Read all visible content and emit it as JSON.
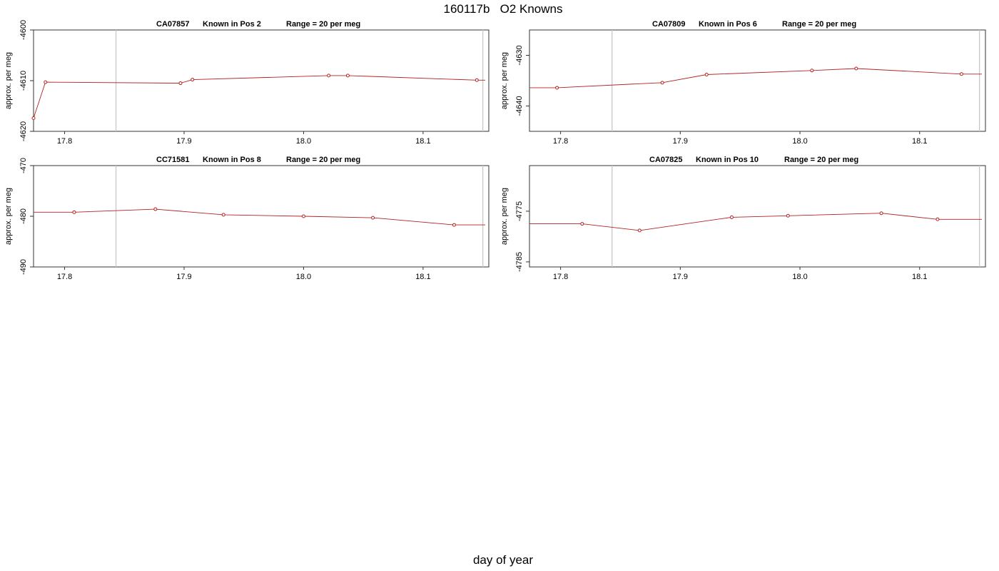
{
  "page": {
    "title": "160117b   O2 Knowns",
    "xlabel": "day of year"
  },
  "colors": {
    "series": "#b22222",
    "reference_line": "#c8c8c8",
    "axis": "#333333"
  },
  "chart_data": [
    {
      "type": "line",
      "title_parts": [
        "CA07857",
        "Known in Pos 2",
        "Range = 20 per meg"
      ],
      "ylabel": "approx. per meg",
      "xlim": [
        17.774,
        18.155
      ],
      "ylim": [
        -4620,
        -4600
      ],
      "xticks": [
        17.8,
        17.9,
        18.0,
        18.1
      ],
      "xtick_labels": [
        "17.8",
        "17.9",
        "18.0",
        "18.1"
      ],
      "yticks": [
        -4620,
        -4610,
        -4600
      ],
      "ytick_labels": [
        "-4620",
        "-4610",
        "-4600"
      ],
      "vlines": [
        17.843,
        18.15
      ],
      "line_x": [
        17.774,
        17.784,
        17.897,
        17.907,
        18.021,
        18.037,
        18.145,
        18.152
      ],
      "line_y": [
        -4617.4,
        -4610.3,
        -4610.5,
        -4609.8,
        -4609.0,
        -4609.0,
        -4609.9,
        -4609.9
      ],
      "points": [
        {
          "x": 17.774,
          "y": -4617.4
        },
        {
          "x": 17.784,
          "y": -4610.3
        },
        {
          "x": 17.897,
          "y": -4610.5
        },
        {
          "x": 17.907,
          "y": -4609.8
        },
        {
          "x": 18.021,
          "y": -4609.0
        },
        {
          "x": 18.037,
          "y": -4609.0
        },
        {
          "x": 18.145,
          "y": -4609.9
        }
      ],
      "grid": false
    },
    {
      "type": "line",
      "title_parts": [
        "CA07809",
        "Known in Pos 6",
        "Range = 20 per meg"
      ],
      "ylabel": "approx. per meg",
      "xlim": [
        17.774,
        18.155
      ],
      "ylim": [
        -4645,
        -4625
      ],
      "xticks": [
        17.8,
        17.9,
        18.0,
        18.1
      ],
      "xtick_labels": [
        "17.8",
        "17.9",
        "18.0",
        "18.1"
      ],
      "yticks": [
        -4640,
        -4630
      ],
      "ytick_labels": [
        "-4640",
        "-4630"
      ],
      "vlines": [
        17.843,
        18.15
      ],
      "line_x": [
        17.774,
        17.797,
        17.885,
        17.922,
        18.01,
        18.047,
        18.135,
        18.152
      ],
      "line_y": [
        -4636.4,
        -4636.4,
        -4635.4,
        -4633.8,
        -4633.0,
        -4632.6,
        -4633.7,
        -4633.7
      ],
      "points": [
        {
          "x": 17.797,
          "y": -4636.4
        },
        {
          "x": 17.885,
          "y": -4635.4
        },
        {
          "x": 17.922,
          "y": -4633.8
        },
        {
          "x": 18.01,
          "y": -4633.0
        },
        {
          "x": 18.047,
          "y": -4632.6
        },
        {
          "x": 18.135,
          "y": -4633.7
        }
      ],
      "grid": false
    },
    {
      "type": "line",
      "title_parts": [
        "CC71581",
        "Known in Pos 8",
        "Range = 20 per meg"
      ],
      "ylabel": "approx. per meg",
      "xlim": [
        17.774,
        18.155
      ],
      "ylim": [
        -490,
        -470
      ],
      "xticks": [
        17.8,
        17.9,
        18.0,
        18.1
      ],
      "xtick_labels": [
        "17.8",
        "17.9",
        "18.0",
        "18.1"
      ],
      "yticks": [
        -490,
        -480,
        -470
      ],
      "ytick_labels": [
        "-490",
        "-480",
        "-470"
      ],
      "vlines": [
        17.843,
        18.15
      ],
      "line_x": [
        17.774,
        17.808,
        17.876,
        17.933,
        18.0,
        18.058,
        18.126,
        18.152
      ],
      "line_y": [
        -479.2,
        -479.2,
        -478.6,
        -479.7,
        -480.0,
        -480.3,
        -481.7,
        -481.7
      ],
      "points": [
        {
          "x": 17.808,
          "y": -479.2
        },
        {
          "x": 17.876,
          "y": -478.6
        },
        {
          "x": 17.933,
          "y": -479.7
        },
        {
          "x": 18.0,
          "y": -480.0
        },
        {
          "x": 18.058,
          "y": -480.3
        },
        {
          "x": 18.126,
          "y": -481.7
        }
      ],
      "grid": false
    },
    {
      "type": "line",
      "title_parts": [
        "CA07825",
        "Known in Pos 10",
        "Range = 20 per meg"
      ],
      "ylabel": "approx. per meg",
      "xlim": [
        17.774,
        18.155
      ],
      "ylim": [
        -4786,
        -4766
      ],
      "xticks": [
        17.8,
        17.9,
        18.0,
        18.1
      ],
      "xtick_labels": [
        "17.8",
        "17.9",
        "18.0",
        "18.1"
      ],
      "yticks": [
        -4785,
        -4775
      ],
      "ytick_labels": [
        "-4785",
        "-4775"
      ],
      "vlines": [
        17.843,
        18.15
      ],
      "line_x": [
        17.774,
        17.818,
        17.866,
        17.943,
        17.99,
        18.068,
        18.115,
        18.152
      ],
      "line_y": [
        -4777.5,
        -4777.5,
        -4778.8,
        -4776.2,
        -4775.9,
        -4775.4,
        -4776.6,
        -4776.6
      ],
      "points": [
        {
          "x": 17.818,
          "y": -4777.5
        },
        {
          "x": 17.866,
          "y": -4778.8
        },
        {
          "x": 17.943,
          "y": -4776.2
        },
        {
          "x": 17.99,
          "y": -4775.9
        },
        {
          "x": 18.068,
          "y": -4775.4
        },
        {
          "x": 18.115,
          "y": -4776.6
        }
      ],
      "grid": false
    }
  ]
}
